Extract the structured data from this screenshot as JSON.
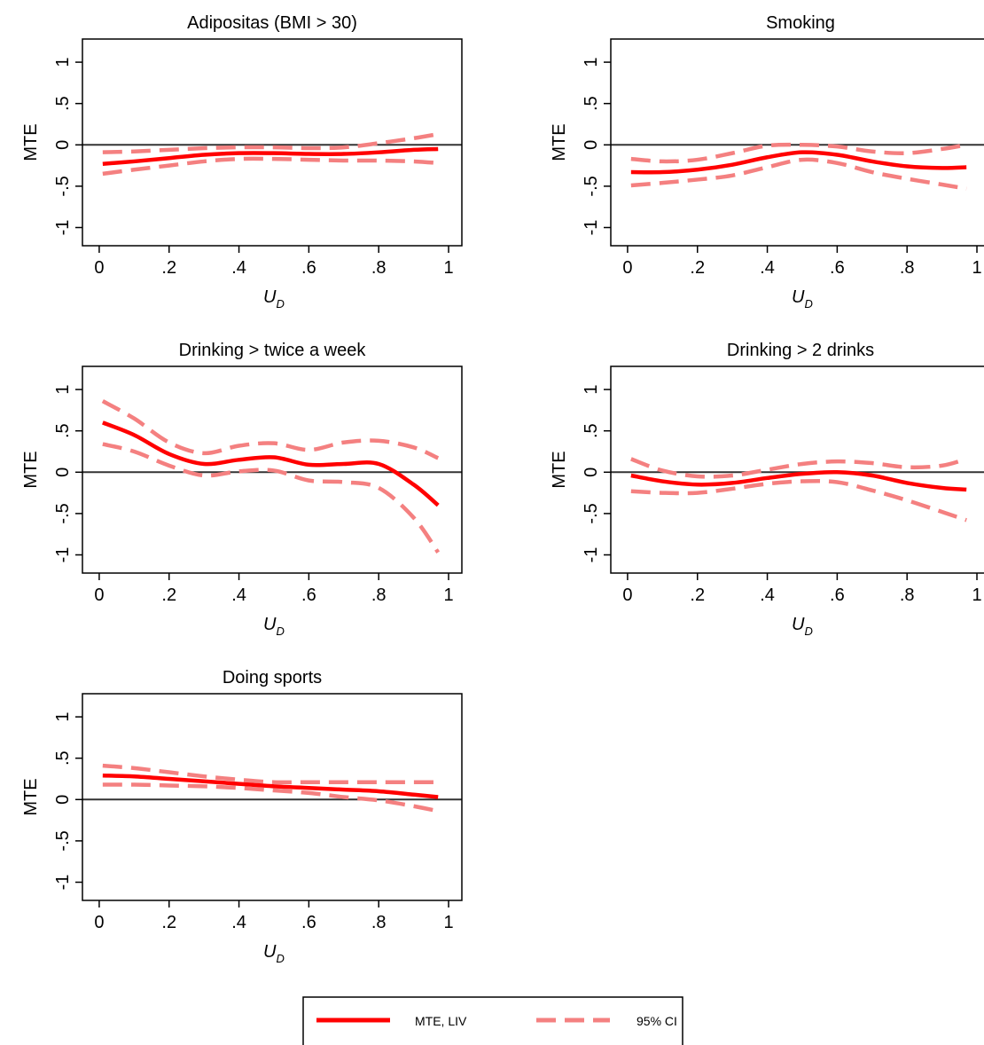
{
  "chart_data": [
    {
      "type": "line",
      "title": "Adipositas (BMI > 30)",
      "ylabel": "MTE",
      "xlabel": "U",
      "xlabel_sub": "D",
      "x": [
        0.01,
        0.1,
        0.2,
        0.3,
        0.4,
        0.5,
        0.6,
        0.7,
        0.8,
        0.9,
        0.97
      ],
      "series": [
        {
          "name": "MTE, LIV",
          "color": "#ff0000",
          "values": [
            -0.23,
            -0.2,
            -0.16,
            -0.12,
            -0.1,
            -0.1,
            -0.11,
            -0.11,
            -0.09,
            -0.06,
            -0.05
          ]
        },
        {
          "name": "95% CI",
          "color": "#f48080",
          "upper": [
            -0.09,
            -0.08,
            -0.06,
            -0.04,
            -0.03,
            -0.03,
            -0.04,
            -0.03,
            0.02,
            0.08,
            0.13
          ],
          "lower": [
            -0.35,
            -0.3,
            -0.25,
            -0.2,
            -0.17,
            -0.17,
            -0.18,
            -0.19,
            -0.19,
            -0.2,
            -0.22
          ]
        }
      ],
      "xlim": [
        -0.048,
        1.038
      ],
      "ylim": [
        -1.22,
        1.28
      ],
      "xticks": [
        0,
        {
          "value": 0.2,
          "label": ".2"
        },
        {
          "value": 0.4,
          "label": ".4"
        },
        {
          "value": 0.6,
          "label": ".6"
        },
        {
          "value": 0.8,
          "label": ".8"
        },
        1
      ],
      "yticks": [
        -1,
        {
          "value": -0.5,
          "label": "-.5"
        },
        0,
        {
          "value": 0.5,
          "label": ".5"
        },
        1
      ]
    },
    {
      "type": "line",
      "title": "Smoking",
      "ylabel": "MTE",
      "xlabel": "U",
      "xlabel_sub": "D",
      "x": [
        0.01,
        0.1,
        0.2,
        0.3,
        0.4,
        0.5,
        0.6,
        0.7,
        0.8,
        0.9,
        0.97
      ],
      "series": [
        {
          "name": "MTE, LIV",
          "color": "#ff0000",
          "values": [
            -0.33,
            -0.33,
            -0.3,
            -0.24,
            -0.15,
            -0.09,
            -0.12,
            -0.2,
            -0.26,
            -0.28,
            -0.27
          ]
        },
        {
          "name": "95% CI",
          "color": "#f48080",
          "upper": [
            -0.17,
            -0.2,
            -0.18,
            -0.1,
            -0.01,
            0.0,
            -0.02,
            -0.08,
            -0.1,
            -0.05,
            0.0
          ],
          "lower": [
            -0.49,
            -0.46,
            -0.42,
            -0.37,
            -0.27,
            -0.18,
            -0.22,
            -0.33,
            -0.41,
            -0.48,
            -0.53
          ]
        }
      ],
      "xlim": [
        -0.048,
        1.038
      ],
      "ylim": [
        -1.22,
        1.28
      ],
      "xticks": [
        0,
        {
          "value": 0.2,
          "label": ".2"
        },
        {
          "value": 0.4,
          "label": ".4"
        },
        {
          "value": 0.6,
          "label": ".6"
        },
        {
          "value": 0.8,
          "label": ".8"
        },
        1
      ],
      "yticks": [
        -1,
        {
          "value": -0.5,
          "label": "-.5"
        },
        0,
        {
          "value": 0.5,
          "label": ".5"
        },
        1
      ]
    },
    {
      "type": "line",
      "title": "Drinking > twice a week",
      "ylabel": "MTE",
      "xlabel": "U",
      "xlabel_sub": "D",
      "x": [
        0.01,
        0.1,
        0.2,
        0.3,
        0.4,
        0.5,
        0.6,
        0.7,
        0.8,
        0.9,
        0.97
      ],
      "series": [
        {
          "name": "MTE, LIV",
          "color": "#ff0000",
          "values": [
            0.6,
            0.45,
            0.22,
            0.1,
            0.15,
            0.18,
            0.09,
            0.1,
            0.1,
            -0.15,
            -0.4
          ]
        },
        {
          "name": "95% CI",
          "color": "#f48080",
          "upper": [
            0.86,
            0.65,
            0.36,
            0.23,
            0.32,
            0.35,
            0.27,
            0.36,
            0.38,
            0.3,
            0.17
          ],
          "lower": [
            0.34,
            0.25,
            0.08,
            -0.04,
            0.01,
            0.02,
            -0.1,
            -0.12,
            -0.19,
            -0.55,
            -0.97
          ]
        }
      ],
      "xlim": [
        -0.048,
        1.038
      ],
      "ylim": [
        -1.22,
        1.28
      ],
      "xticks": [
        0,
        {
          "value": 0.2,
          "label": ".2"
        },
        {
          "value": 0.4,
          "label": ".4"
        },
        {
          "value": 0.6,
          "label": ".6"
        },
        {
          "value": 0.8,
          "label": ".8"
        },
        1
      ],
      "yticks": [
        -1,
        {
          "value": -0.5,
          "label": "-.5"
        },
        0,
        {
          "value": 0.5,
          "label": ".5"
        },
        1
      ]
    },
    {
      "type": "line",
      "title": "Drinking > 2 drinks",
      "ylabel": "MTE",
      "xlabel": "U",
      "xlabel_sub": "D",
      "x": [
        0.01,
        0.1,
        0.2,
        0.3,
        0.4,
        0.5,
        0.6,
        0.7,
        0.8,
        0.9,
        0.97
      ],
      "series": [
        {
          "name": "MTE, LIV",
          "color": "#ff0000",
          "values": [
            -0.04,
            -0.11,
            -0.15,
            -0.13,
            -0.07,
            -0.02,
            0.0,
            -0.04,
            -0.13,
            -0.19,
            -0.21
          ]
        },
        {
          "name": "95% CI",
          "color": "#f48080",
          "upper": [
            0.16,
            0.02,
            -0.05,
            -0.04,
            0.03,
            0.1,
            0.13,
            0.11,
            0.06,
            0.08,
            0.16
          ],
          "lower": [
            -0.23,
            -0.25,
            -0.25,
            -0.2,
            -0.14,
            -0.11,
            -0.12,
            -0.22,
            -0.34,
            -0.48,
            -0.58
          ]
        }
      ],
      "xlim": [
        -0.048,
        1.038
      ],
      "ylim": [
        -1.22,
        1.28
      ],
      "xticks": [
        0,
        {
          "value": 0.2,
          "label": ".2"
        },
        {
          "value": 0.4,
          "label": ".4"
        },
        {
          "value": 0.6,
          "label": ".6"
        },
        {
          "value": 0.8,
          "label": ".8"
        },
        1
      ],
      "yticks": [
        -1,
        {
          "value": -0.5,
          "label": "-.5"
        },
        0,
        {
          "value": 0.5,
          "label": ".5"
        },
        1
      ]
    },
    {
      "type": "line",
      "title": "Doing sports",
      "ylabel": "MTE",
      "xlabel": "U",
      "xlabel_sub": "D",
      "x": [
        0.01,
        0.1,
        0.2,
        0.3,
        0.4,
        0.5,
        0.6,
        0.7,
        0.8,
        0.9,
        0.97
      ],
      "series": [
        {
          "name": "MTE, LIV",
          "color": "#ff0000",
          "values": [
            0.29,
            0.28,
            0.25,
            0.22,
            0.19,
            0.16,
            0.14,
            0.12,
            0.1,
            0.06,
            0.03
          ]
        },
        {
          "name": "95% CI",
          "color": "#f48080",
          "upper": [
            0.41,
            0.38,
            0.33,
            0.28,
            0.24,
            0.21,
            0.21,
            0.21,
            0.21,
            0.21,
            0.21
          ],
          "lower": [
            0.18,
            0.18,
            0.17,
            0.16,
            0.14,
            0.11,
            0.08,
            0.03,
            -0.01,
            -0.08,
            -0.14
          ]
        }
      ],
      "xlim": [
        -0.048,
        1.038
      ],
      "ylim": [
        -1.22,
        1.28
      ],
      "xticks": [
        0,
        {
          "value": 0.2,
          "label": ".2"
        },
        {
          "value": 0.4,
          "label": ".4"
        },
        {
          "value": 0.6,
          "label": ".6"
        },
        {
          "value": 0.8,
          "label": ".8"
        },
        1
      ],
      "yticks": [
        -1,
        {
          "value": -0.5,
          "label": "-.5"
        },
        0,
        {
          "value": 0.5,
          "label": ".5"
        },
        1
      ]
    }
  ]
}
